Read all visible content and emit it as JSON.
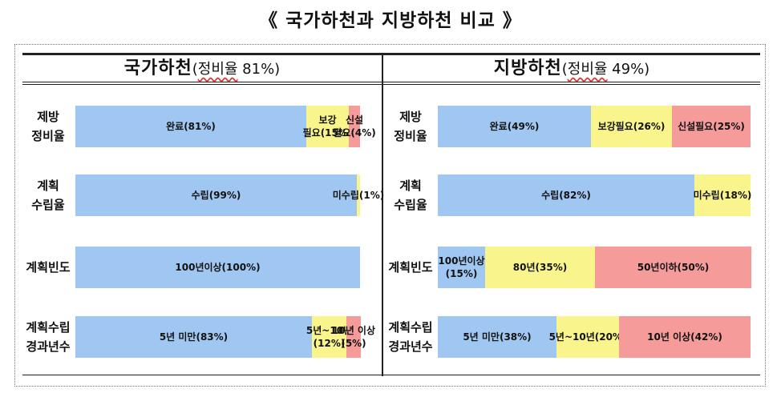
{
  "page_title": "《 국가하천과 지방하천 비교 》",
  "colors": {
    "complete": "#9fc7f2",
    "partial": "#f9f58c",
    "new": "#f59b9a"
  },
  "panels": [
    {
      "title_main": "국가하천",
      "title_sub_open": "(",
      "title_sub_ul": "정비율",
      "title_sub_rest": " 81%)"
    },
    {
      "title_main": "지방하천",
      "title_sub_open": "(",
      "title_sub_ul": "정비율",
      "title_sub_rest": " 49%)"
    }
  ],
  "row_labels": [
    {
      "line1": "제방",
      "line2": "정비율"
    },
    {
      "line1": "계획",
      "line2": "수립율"
    },
    {
      "line1": "계획빈도",
      "line2": ""
    },
    {
      "line1": "계획수립",
      "line2": "경과년수"
    }
  ],
  "chart_data": [
    {
      "type": "bar",
      "panel": "국가하천",
      "stacked": true,
      "orientation": "horizontal",
      "rows": [
        {
          "label": "제방 정비율",
          "segments": [
            {
              "text": "완료(81%)",
              "value": 81,
              "color": "blue"
            },
            {
              "text": "보강 필요(15%)",
              "value": 15,
              "color": "yellow"
            },
            {
              "text": "신설 필요(4%)",
              "value": 4,
              "color": "red"
            }
          ]
        },
        {
          "label": "계획 수립율",
          "segments": [
            {
              "text": "수립(99%)",
              "value": 99,
              "color": "blue"
            },
            {
              "text": "미수립(1%)",
              "value": 1,
              "color": "yellow"
            }
          ]
        },
        {
          "label": "계획빈도",
          "segments": [
            {
              "text": "100년이상(100%)",
              "value": 100,
              "color": "blue"
            }
          ]
        },
        {
          "label": "계획수립 경과년수",
          "segments": [
            {
              "text": "5년 미만(83%)",
              "value": 83,
              "color": "blue"
            },
            {
              "text": "5년~10년 (12%)",
              "value": 12,
              "color": "yellow"
            },
            {
              "text": "10년 이상 (5%)",
              "value": 5,
              "color": "red"
            }
          ]
        }
      ]
    },
    {
      "type": "bar",
      "panel": "지방하천",
      "stacked": true,
      "orientation": "horizontal",
      "rows": [
        {
          "label": "제방 정비율",
          "segments": [
            {
              "text": "완료(49%)",
              "value": 49,
              "color": "blue"
            },
            {
              "text": "보강필요(26%)",
              "value": 26,
              "color": "yellow"
            },
            {
              "text": "신설필요(25%)",
              "value": 25,
              "color": "red"
            }
          ]
        },
        {
          "label": "계획 수립율",
          "segments": [
            {
              "text": "수립(82%)",
              "value": 82,
              "color": "blue"
            },
            {
              "text": "미수립(18%)",
              "value": 18,
              "color": "yellow"
            }
          ]
        },
        {
          "label": "계획빈도",
          "segments": [
            {
              "text": "100년이상 (15%)",
              "value": 15,
              "color": "blue"
            },
            {
              "text": "80년(35%)",
              "value": 35,
              "color": "yellow"
            },
            {
              "text": "50년이하(50%)",
              "value": 50,
              "color": "red"
            }
          ]
        },
        {
          "label": "계획수립 경과년수",
          "segments": [
            {
              "text": "5년 미만(38%)",
              "value": 38,
              "color": "blue"
            },
            {
              "text": "5년~10년(20%)",
              "value": 20,
              "color": "yellow"
            },
            {
              "text": "10년 이상(42%)",
              "value": 42,
              "color": "red"
            }
          ]
        }
      ]
    }
  ]
}
